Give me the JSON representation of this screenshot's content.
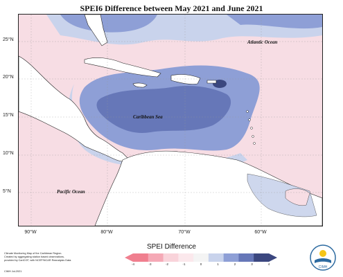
{
  "title": "SPEI6 Difference between May 2021 and June 2021",
  "map": {
    "labels": {
      "atlantic": "Atlantic Ocean",
      "caribbean": "Caribbean Sea",
      "pacific": "Pacific Ocean"
    },
    "lat_ticks": [
      "25°N",
      "20°N",
      "15°N",
      "10°N",
      "5°N"
    ],
    "lon_ticks": [
      "90°W",
      "80°W",
      "70°W",
      "60°W"
    ]
  },
  "credit": [
    "Climate Monitoring Map of the Caribbean Region.",
    "Created by aggregating station based observations,",
    "provided by CariCOF, with NCEP/NCAR Reanalysis Data."
  ],
  "footer_date": "CIMH Jul-2021",
  "legend": {
    "title": "SPEI Difference",
    "ticks": [
      "-4",
      "-3",
      "-2",
      "-1",
      "0",
      "1",
      "2",
      "3",
      "4"
    ],
    "colors": [
      "#f07f8f",
      "#f5a9b6",
      "#f9d3da",
      "#fbe8ec",
      "#f4f4f4",
      "#c9d3ec",
      "#8e9fd6",
      "#6677b8",
      "#3b477f"
    ]
  },
  "logo_text": "CIMH"
}
